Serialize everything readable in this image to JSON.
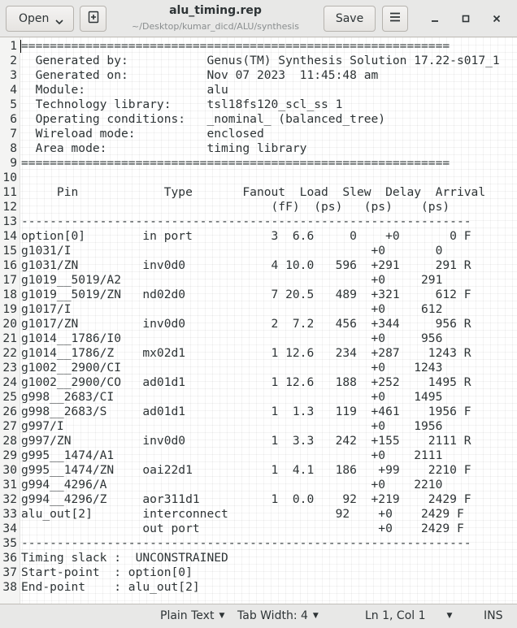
{
  "header": {
    "open_label": "Open",
    "title": "alu_timing.rep",
    "subtitle": "~/Desktop/kumar_dicd/ALU/synthesis",
    "save_label": "Save"
  },
  "editor": {
    "lines": [
      {
        "num": "1",
        "text": "============================================================"
      },
      {
        "num": "2",
        "text": "  Generated by:           Genus(TM) Synthesis Solution 17.22-s017_1"
      },
      {
        "num": "3",
        "text": "  Generated on:           Nov 07 2023  11:45:48 am"
      },
      {
        "num": "4",
        "text": "  Module:                 alu"
      },
      {
        "num": "5",
        "text": "  Technology library:     tsl18fs120_scl_ss 1"
      },
      {
        "num": "6",
        "text": "  Operating conditions:   _nominal_ (balanced_tree)"
      },
      {
        "num": "7",
        "text": "  Wireload mode:          enclosed"
      },
      {
        "num": "8",
        "text": "  Area mode:              timing library"
      },
      {
        "num": "9",
        "text": "============================================================"
      },
      {
        "num": "10",
        "text": ""
      },
      {
        "num": "11",
        "text": "     Pin            Type       Fanout  Load  Slew  Delay  Arrival"
      },
      {
        "num": "12",
        "text": "                                   (fF)  (ps)   (ps)    (ps)"
      },
      {
        "num": "13",
        "text": "---------------------------------------------------------------"
      },
      {
        "num": "14",
        "text": "option[0]        in port           3  6.6     0    +0       0 F"
      },
      {
        "num": "15",
        "text": "g1031/I                                          +0       0"
      },
      {
        "num": "16",
        "text": "g1031/ZN         inv0d0            4 10.0   596  +291     291 R"
      },
      {
        "num": "17",
        "text": "g1019__5019/A2                                   +0     291"
      },
      {
        "num": "18",
        "text": "g1019__5019/ZN   nd02d0            7 20.5   489  +321     612 F"
      },
      {
        "num": "19",
        "text": "g1017/I                                          +0     612"
      },
      {
        "num": "20",
        "text": "g1017/ZN         inv0d0            2  7.2   456  +344     956 R"
      },
      {
        "num": "21",
        "text": "g1014__1786/I0                                   +0     956"
      },
      {
        "num": "22",
        "text": "g1014__1786/Z    mx02d1            1 12.6   234  +287    1243 R"
      },
      {
        "num": "23",
        "text": "g1002__2900/CI                                   +0    1243"
      },
      {
        "num": "24",
        "text": "g1002__2900/CO   ad01d1            1 12.6   188  +252    1495 R"
      },
      {
        "num": "25",
        "text": "g998__2683/CI                                    +0    1495"
      },
      {
        "num": "26",
        "text": "g998__2683/S     ad01d1            1  1.3   119  +461    1956 F"
      },
      {
        "num": "27",
        "text": "g997/I                                           +0    1956"
      },
      {
        "num": "28",
        "text": "g997/ZN          inv0d0            1  3.3   242  +155    2111 R"
      },
      {
        "num": "29",
        "text": "g995__1474/A1                                    +0    2111"
      },
      {
        "num": "30",
        "text": "g995__1474/ZN    oai22d1           1  4.1   186   +99    2210 F"
      },
      {
        "num": "31",
        "text": "g994__4296/A                                     +0    2210"
      },
      {
        "num": "32",
        "text": "g994__4296/Z     aor311d1          1  0.0    92  +219    2429 F"
      },
      {
        "num": "33",
        "text": "alu_out[2]       interconnect               92    +0    2429 F"
      },
      {
        "num": "34",
        "text": "                 out port                         +0    2429 F"
      },
      {
        "num": "35",
        "text": "---------------------------------------------------------------"
      },
      {
        "num": "36",
        "text": "Timing slack :  UNCONSTRAINED"
      },
      {
        "num": "37",
        "text": "Start-point  : option[0]"
      },
      {
        "num": "38",
        "text": "End-point    : alu_out[2]"
      }
    ]
  },
  "statusbar": {
    "language": "Plain Text",
    "tab_width": "Tab Width: 4",
    "position": "Ln 1, Col 1",
    "mode": "INS"
  }
}
